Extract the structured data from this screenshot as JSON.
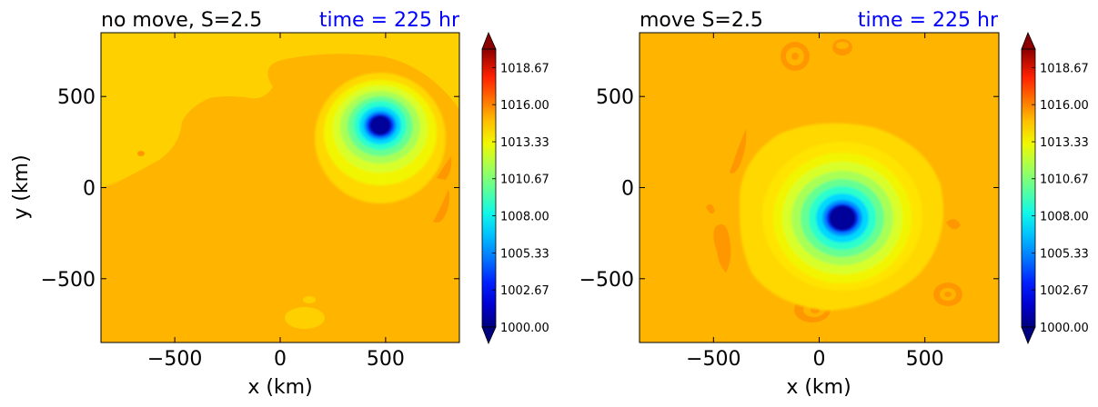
{
  "chart_data": [
    {
      "type": "contour",
      "title": "no move, S=2.5",
      "time_label": "time = 225 hr",
      "xlabel": "x (km)",
      "ylabel": "y (km)",
      "xlim": [
        -850,
        850
      ],
      "ylim": [
        -850,
        850
      ],
      "xticks": [
        -500,
        0,
        500
      ],
      "yticks": [
        -500,
        0,
        500
      ],
      "xtick_labels": [
        "−500",
        "0",
        "500"
      ],
      "ytick_labels": [
        "−500",
        "0",
        "500"
      ],
      "field": "sea-level pressure",
      "vortex_center": [
        470,
        340
      ],
      "center_value": 1000.0,
      "colorbar": {
        "min": 1000.0,
        "max": 1020.0,
        "tick_values": [
          1000.0,
          1002.67,
          1005.33,
          1008.0,
          1010.67,
          1013.33,
          1016.0,
          1018.67
        ],
        "tick_labels": [
          "1000.00",
          "1002.67",
          "1005.33",
          "1008.00",
          "1010.67",
          "1013.33",
          "1016.00",
          "1018.67"
        ],
        "extend": "both"
      }
    },
    {
      "type": "contour",
      "title": "move S=2.5",
      "time_label": "time = 225 hr",
      "xlabel": "x (km)",
      "ylabel": "",
      "xlim": [
        -850,
        850
      ],
      "ylim": [
        -850,
        850
      ],
      "xticks": [
        -500,
        0,
        500
      ],
      "yticks": [
        -500,
        0,
        500
      ],
      "xtick_labels": [
        "−500",
        "0",
        "500"
      ],
      "ytick_labels": [
        "−500",
        "0",
        "500"
      ],
      "field": "sea-level pressure",
      "vortex_center": [
        110,
        -180
      ],
      "center_value": 1000.0,
      "colorbar": {
        "min": 1000.0,
        "max": 1020.0,
        "tick_values": [
          1000.0,
          1002.67,
          1005.33,
          1008.0,
          1010.67,
          1013.33,
          1016.0,
          1018.67
        ],
        "tick_labels": [
          "1000.00",
          "1002.67",
          "1005.33",
          "1008.00",
          "1010.67",
          "1013.33",
          "1016.00",
          "1018.67"
        ],
        "extend": "both"
      }
    }
  ],
  "colors": {
    "background_field": "#FFB400",
    "ring_yellow": "#FFD800",
    "ring_bright_yellow": "#F2F500",
    "ring_lime": "#B4FF46",
    "ring_green": "#73FF84",
    "ring_cyan": "#2CFFCD",
    "ring_lightblue": "#00D8FF",
    "ring_blue": "#0060FF",
    "ring_deepblue": "#0010E0",
    "core_navy": "#00008A",
    "orange_patch": "#FF9800",
    "light_patch": "#FFCF20",
    "time_label_color": "#0000FF"
  }
}
